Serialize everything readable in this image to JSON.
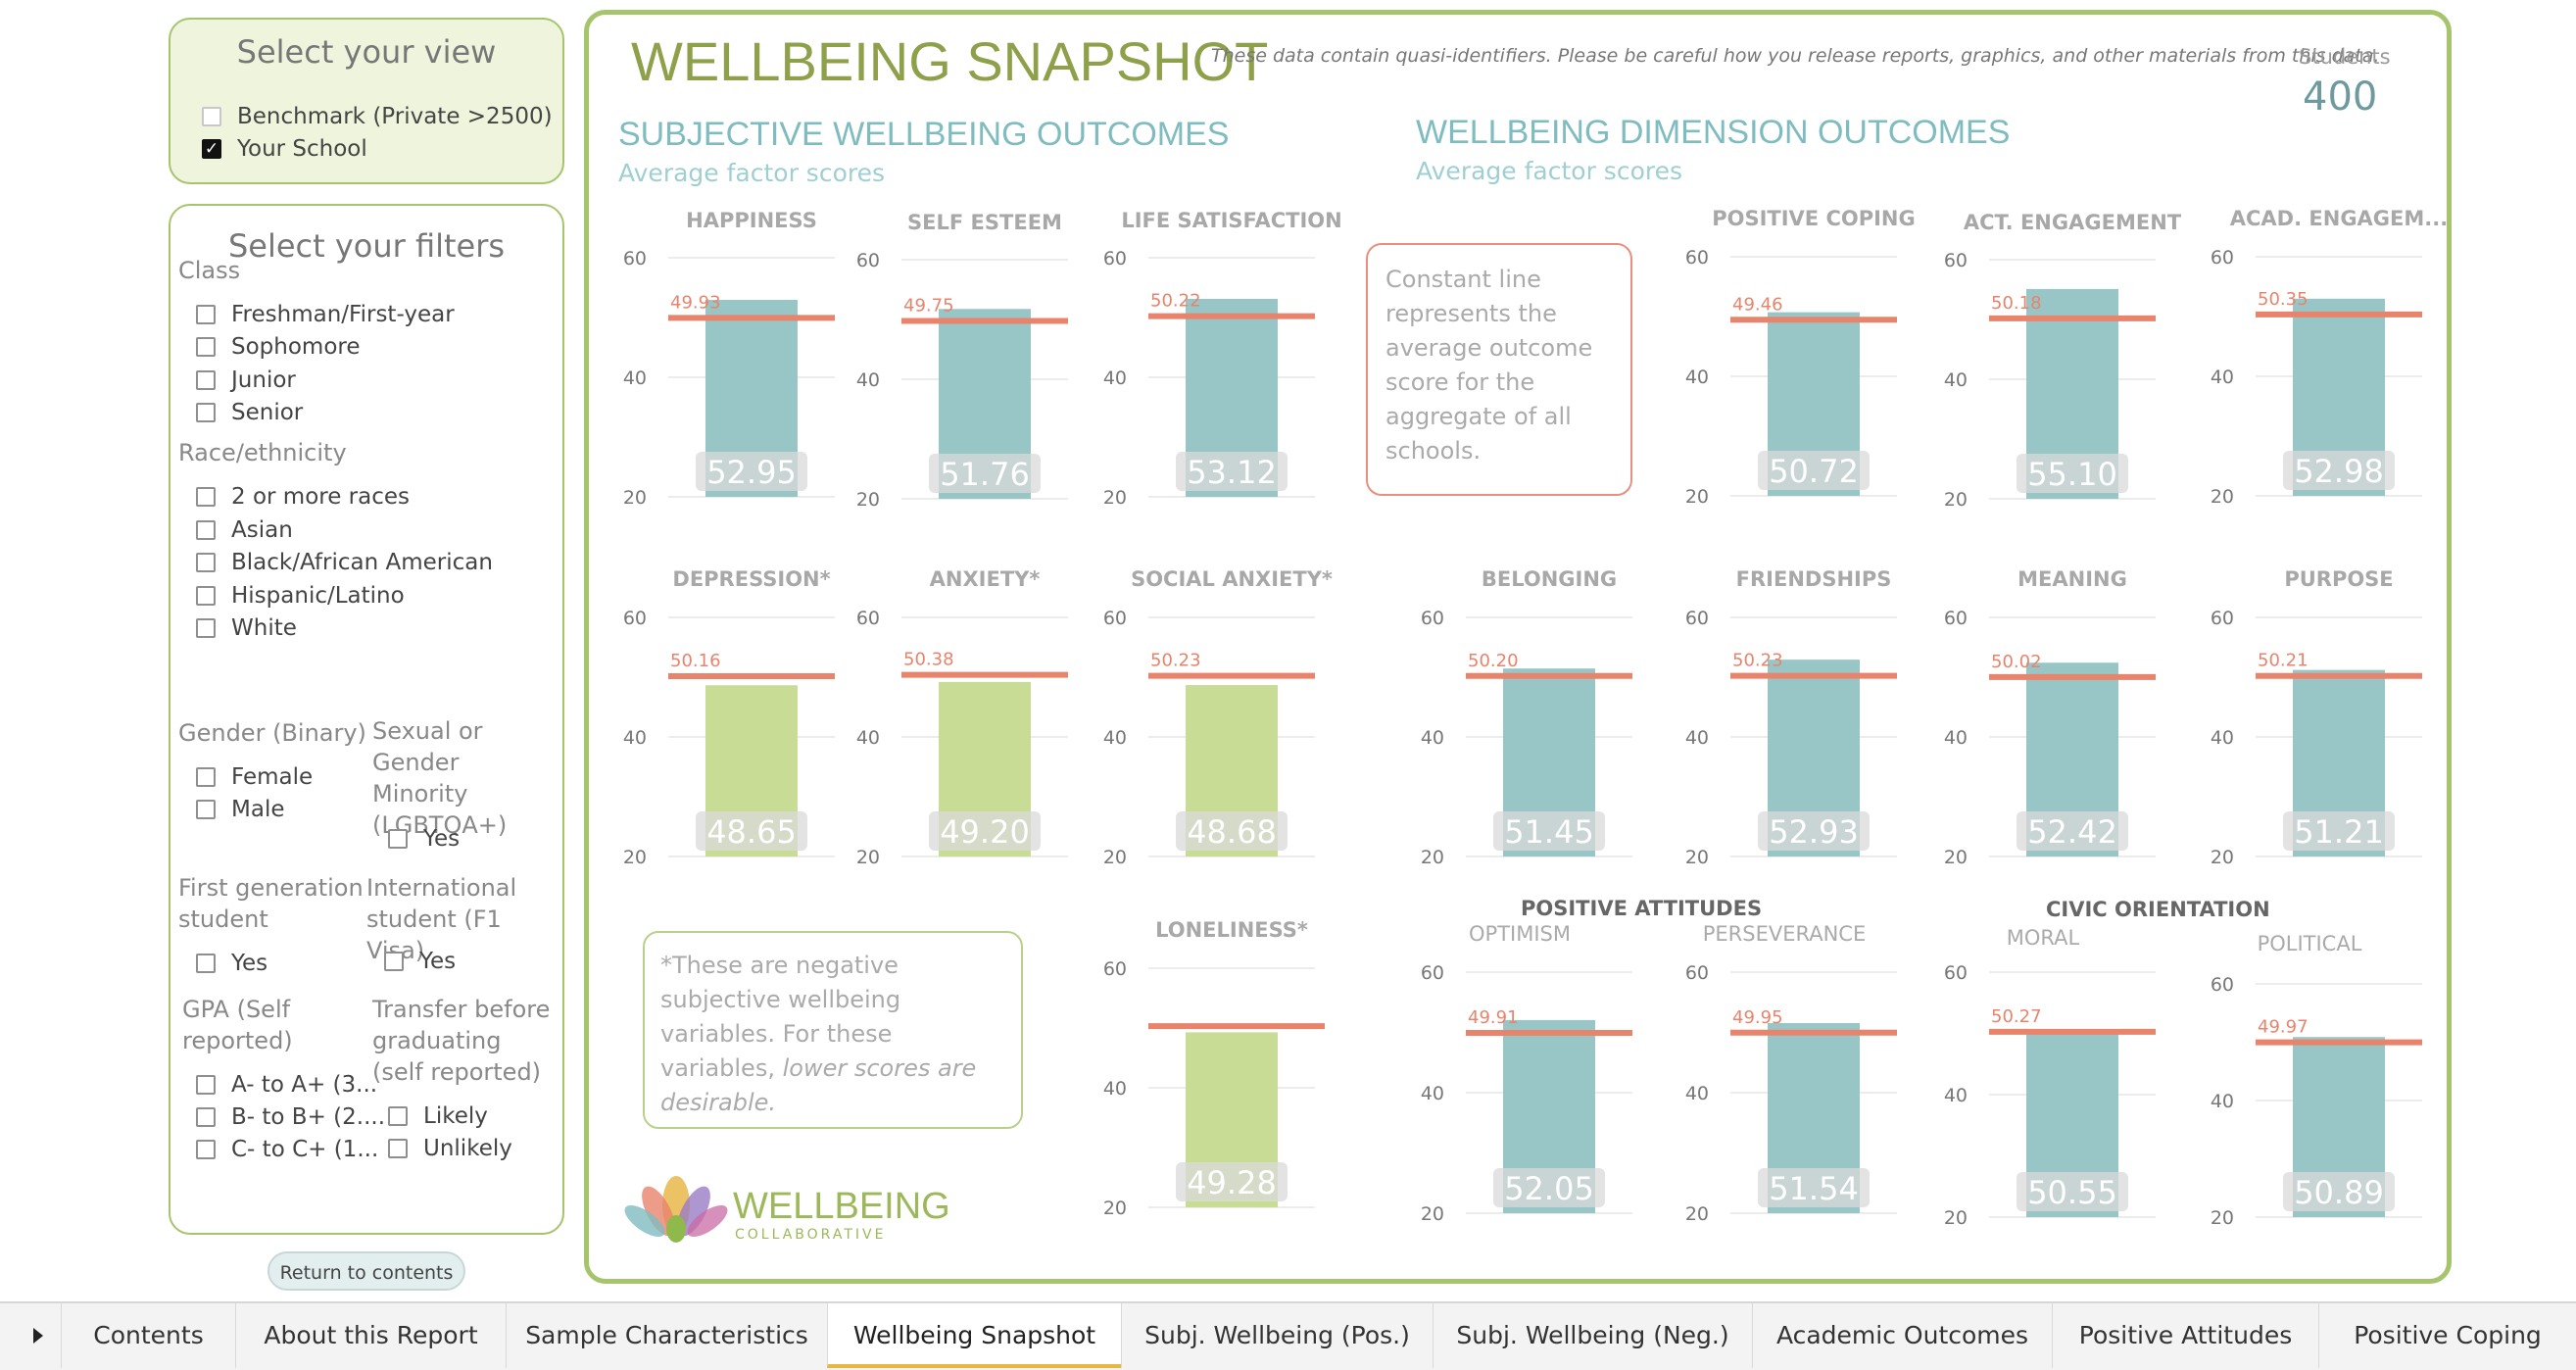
{
  "view_panel": {
    "title": "Select your view",
    "options": [
      {
        "label": "Benchmark (Private >2500)",
        "checked": false
      },
      {
        "label": "Your School",
        "checked": true
      }
    ]
  },
  "filters_panel": {
    "title": "Select your filters",
    "class_label": "Class",
    "class_options": [
      "Freshman/First-year",
      "Sophomore",
      "Junior",
      "Senior"
    ],
    "race_label": "Race/ethnicity",
    "race_options": [
      "2 or more races",
      "Asian",
      "Black/African American",
      "Hispanic/Latino",
      "White"
    ],
    "gender_label": "Gender (Binary)",
    "gender_options": [
      "Female",
      "Male"
    ],
    "sgm_label": "Sexual or Gender Minority (LGBTQA+)",
    "sgm_option": "Yes",
    "firstgen_label": "First generation student",
    "firstgen_option": "Yes",
    "intl_label": "International student (F1 Visa)",
    "intl_option": "Yes",
    "gpa_label": "GPA (Self reported)",
    "gpa_options": [
      "A- to A+ (3...",
      "B- to B+ (2....",
      "C- to C+ (1..."
    ],
    "transfer_label": "Transfer before graduating (self reported)",
    "transfer_options": [
      "Likely",
      "Unlikely"
    ]
  },
  "return_button": "Return to contents",
  "main": {
    "title": "WELLBEING SNAPSHOT",
    "disclaimer": "These data contain quasi-identifiers. Please be careful how you release reports, graphics, and other materials from this data.",
    "students_label": "Students",
    "students_value": "400",
    "left_heading": "SUBJECTIVE WELLBEING OUTCOMES",
    "left_sub": "Average factor scores",
    "right_heading": "WELLBEING DIMENSION OUTCOMES",
    "right_sub": "Average factor scores",
    "constant_note": "Constant line represents the average outcome score for the aggregate of all schools.",
    "negative_note_a": "*These are negative subjective wellbeing variables. For these variables, ",
    "negative_note_em": "lower scores are desirable.",
    "group_positive_attitudes": "POSITIVE ATTITUDES",
    "group_civic": "CIVIC ORIENTATION",
    "logo_text": "WELLBEING",
    "logo_sub": "COLLABORATIVE"
  },
  "colors": {
    "teal": "#98c6c6",
    "green": "#c8dc96",
    "benchmark_line": "#e8836c",
    "frame": "#a6c46b",
    "title_green": "#8fa04a",
    "heading_teal": "#7fbcc0"
  },
  "chart_data": [
    {
      "type": "bar",
      "title": "HAPPINESS",
      "values": [
        52.95
      ],
      "benchmark": 49.93,
      "ylim": [
        20,
        60
      ],
      "yticks": [
        20,
        40,
        60
      ],
      "color": "teal"
    },
    {
      "type": "bar",
      "title": "SELF ESTEEM",
      "values": [
        51.76
      ],
      "benchmark": 49.75,
      "ylim": [
        20,
        60
      ],
      "yticks": [
        20,
        40,
        60
      ],
      "color": "teal"
    },
    {
      "type": "bar",
      "title": "LIFE SATISFACTION",
      "values": [
        53.12
      ],
      "benchmark": 50.22,
      "ylim": [
        20,
        60
      ],
      "yticks": [
        20,
        40,
        60
      ],
      "color": "teal"
    },
    {
      "type": "bar",
      "title": "DEPRESSION*",
      "values": [
        48.65
      ],
      "benchmark": 50.16,
      "ylim": [
        20,
        60
      ],
      "yticks": [
        20,
        40,
        60
      ],
      "color": "green"
    },
    {
      "type": "bar",
      "title": "ANXIETY*",
      "values": [
        49.2
      ],
      "benchmark": 50.38,
      "ylim": [
        20,
        60
      ],
      "yticks": [
        20,
        40,
        60
      ],
      "color": "green"
    },
    {
      "type": "bar",
      "title": "SOCIAL ANXIETY*",
      "values": [
        48.68
      ],
      "benchmark": 50.23,
      "ylim": [
        20,
        60
      ],
      "yticks": [
        20,
        40,
        60
      ],
      "color": "green"
    },
    {
      "type": "bar",
      "title": "LONELINESS*",
      "values": [
        49.28
      ],
      "benchmark": null,
      "ylim": [
        20,
        60
      ],
      "yticks": [
        20,
        40,
        60
      ],
      "color": "green"
    },
    {
      "type": "bar",
      "title": "POSITIVE COPING",
      "values": [
        50.72
      ],
      "benchmark": 49.46,
      "ylim": [
        20,
        60
      ],
      "yticks": [
        20,
        40,
        60
      ],
      "color": "teal"
    },
    {
      "type": "bar",
      "title": "ACT. ENGAGEMENT",
      "values": [
        55.1
      ],
      "benchmark": 50.18,
      "ylim": [
        20,
        60
      ],
      "yticks": [
        20,
        40,
        60
      ],
      "color": "teal"
    },
    {
      "type": "bar",
      "title": "ACAD. ENGAGEM...",
      "values": [
        52.98
      ],
      "benchmark": 50.35,
      "ylim": [
        20,
        60
      ],
      "yticks": [
        20,
        40,
        60
      ],
      "color": "teal"
    },
    {
      "type": "bar",
      "title": "BELONGING",
      "values": [
        51.45
      ],
      "benchmark": 50.2,
      "ylim": [
        20,
        60
      ],
      "yticks": [
        20,
        40,
        60
      ],
      "color": "teal"
    },
    {
      "type": "bar",
      "title": "FRIENDSHIPS",
      "values": [
        52.93
      ],
      "benchmark": 50.23,
      "ylim": [
        20,
        60
      ],
      "yticks": [
        20,
        40,
        60
      ],
      "color": "teal"
    },
    {
      "type": "bar",
      "title": "MEANING",
      "values": [
        52.42
      ],
      "benchmark": 50.02,
      "ylim": [
        20,
        60
      ],
      "yticks": [
        20,
        40,
        60
      ],
      "color": "teal"
    },
    {
      "type": "bar",
      "title": "PURPOSE",
      "values": [
        51.21
      ],
      "benchmark": 50.21,
      "ylim": [
        20,
        60
      ],
      "yticks": [
        20,
        40,
        60
      ],
      "color": "teal"
    },
    {
      "type": "bar",
      "title": "OPTIMISM",
      "values": [
        52.05
      ],
      "benchmark": 49.91,
      "ylim": [
        20,
        60
      ],
      "yticks": [
        20,
        40,
        60
      ],
      "color": "teal"
    },
    {
      "type": "bar",
      "title": "PERSEVERANCE",
      "values": [
        51.54
      ],
      "benchmark": 49.95,
      "ylim": [
        20,
        60
      ],
      "yticks": [
        20,
        40,
        60
      ],
      "color": "teal"
    },
    {
      "type": "bar",
      "title": "MORAL",
      "values": [
        50.55
      ],
      "benchmark": 50.27,
      "ylim": [
        20,
        60
      ],
      "yticks": [
        20,
        40,
        60
      ],
      "color": "teal"
    },
    {
      "type": "bar",
      "title": "POLITICAL",
      "values": [
        50.89
      ],
      "benchmark": 49.97,
      "ylim": [
        20,
        60
      ],
      "yticks": [
        20,
        40,
        60
      ],
      "color": "teal"
    }
  ],
  "tabs": [
    {
      "label": "Contents",
      "active": false
    },
    {
      "label": "About this Report",
      "active": false
    },
    {
      "label": "Sample Characteristics",
      "active": false
    },
    {
      "label": "Wellbeing Snapshot",
      "active": true
    },
    {
      "label": "Subj. Wellbeing (Pos.)",
      "active": false
    },
    {
      "label": "Subj. Wellbeing (Neg.)",
      "active": false
    },
    {
      "label": "Academic Outcomes",
      "active": false
    },
    {
      "label": "Positive Attitudes",
      "active": false
    },
    {
      "label": "Positive Coping",
      "active": false
    }
  ]
}
